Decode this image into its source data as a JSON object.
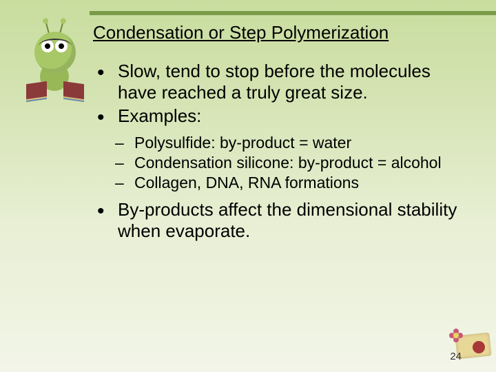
{
  "title": "Condensation or Step Polymerization",
  "bullets": {
    "b1": "Slow, tend to stop before the molecules have reached a truly great size.",
    "b2": "Examples:",
    "s1": "Polysulfide: by-product = water",
    "s2": "Condensation silicone: by-product = alcohol",
    "s3": "Collagen, DNA, RNA formations",
    "b3": "By-products affect the dimensional stability when evaporate."
  },
  "page_number": "24",
  "colors": {
    "accent_line": "#7a9b4a",
    "bg_top": "#c8dd9e",
    "bg_bottom": "#f2f5e8",
    "text": "#000000"
  }
}
